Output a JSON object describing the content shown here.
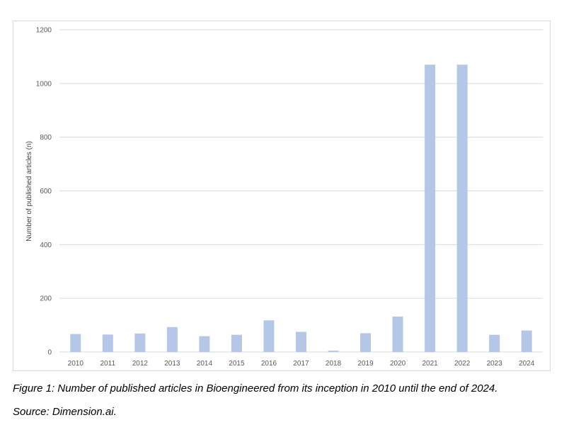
{
  "chart_data": {
    "type": "bar",
    "categories": [
      "2010",
      "2011",
      "2012",
      "2013",
      "2014",
      "2015",
      "2016",
      "2017",
      "2018",
      "2019",
      "2020",
      "2021",
      "2022",
      "2023",
      "2024"
    ],
    "values": [
      67,
      65,
      69,
      93,
      59,
      64,
      118,
      75,
      5,
      70,
      132,
      1070,
      1070,
      64,
      80
    ],
    "title": "",
    "xlabel": "",
    "ylabel": "Number of published articles (n)",
    "ylim": [
      0,
      1200
    ],
    "yticks": [
      0,
      200,
      400,
      600,
      800,
      1000,
      1200
    ],
    "grid": true,
    "legend": "none",
    "bar_color": "#b4c7e7",
    "grid_color": "#d9d9d9"
  },
  "caption": {
    "line1": "Figure 1: Number of published articles in Bioengineered from its inception in 2010 until the end of 2024.",
    "line2": "Source: Dimension.ai."
  }
}
